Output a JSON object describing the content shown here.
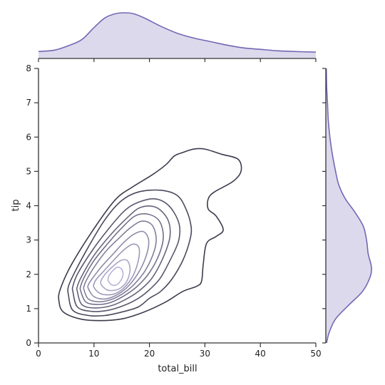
{
  "chart_data": {
    "type": "kde-joint",
    "xlabel": "total_bill",
    "ylabel": "tip",
    "xlim": [
      0,
      50
    ],
    "ylim": [
      0,
      8
    ],
    "xticks": [
      "0",
      "10",
      "20",
      "30",
      "40",
      "50"
    ],
    "yticks": [
      "0",
      "1",
      "2",
      "3",
      "4",
      "5",
      "6",
      "7",
      "8"
    ],
    "grid": false,
    "colors": {
      "outer_contour": "#3d3b4d",
      "inner_contour": "#b9b3d9",
      "marginal_line": "#7566b4",
      "marginal_fill": "#ddd9ec",
      "axis": "#333333"
    },
    "contour_levels": [
      {
        "level": 1,
        "points": [
          [
            3.7,
            1.2
          ],
          [
            4.5,
            0.9
          ],
          [
            7.5,
            0.7
          ],
          [
            11,
            0.65
          ],
          [
            15,
            0.7
          ],
          [
            19,
            0.9
          ],
          [
            23,
            1.2
          ],
          [
            26,
            1.5
          ],
          [
            28.5,
            1.65
          ],
          [
            29.4,
            1.8
          ],
          [
            29.7,
            2.3
          ],
          [
            30.3,
            2.9
          ],
          [
            32,
            3.1
          ],
          [
            33.3,
            3.3
          ],
          [
            32,
            3.7
          ],
          [
            30.6,
            3.9
          ],
          [
            30.6,
            4.2
          ],
          [
            31.7,
            4.4
          ],
          [
            35,
            4.7
          ],
          [
            36.5,
            5
          ],
          [
            36,
            5.35
          ],
          [
            33,
            5.5
          ],
          [
            30,
            5.65
          ],
          [
            28,
            5.65
          ],
          [
            26,
            5.55
          ],
          [
            24.5,
            5.45
          ],
          [
            23,
            5.2
          ],
          [
            20.5,
            4.9
          ],
          [
            17,
            4.55
          ],
          [
            14,
            4.2
          ],
          [
            10.5,
            3.45
          ],
          [
            6,
            2.3
          ],
          [
            3.9,
            1.55
          ]
        ]
      },
      {
        "level": 2,
        "points": [
          [
            5.4,
            1.4
          ],
          [
            6.2,
            0.95
          ],
          [
            9,
            0.8
          ],
          [
            12,
            0.8
          ],
          [
            15,
            0.9
          ],
          [
            18,
            1.05
          ],
          [
            20,
            1.3
          ],
          [
            22,
            1.5
          ],
          [
            24,
            1.85
          ],
          [
            26,
            2.4
          ],
          [
            27.3,
            3
          ],
          [
            27.5,
            3.4
          ],
          [
            26.6,
            3.9
          ],
          [
            25,
            4.3
          ],
          [
            22,
            4.45
          ],
          [
            18,
            4.4
          ],
          [
            15,
            4.15
          ],
          [
            12,
            3.6
          ],
          [
            9,
            2.8
          ],
          [
            6.5,
            2.05
          ],
          [
            5.4,
            1.65
          ]
        ]
      },
      {
        "level": 3,
        "points": [
          [
            6.2,
            1.5
          ],
          [
            7,
            1.05
          ],
          [
            9.5,
            0.92
          ],
          [
            12.5,
            0.95
          ],
          [
            15.5,
            1.1
          ],
          [
            18,
            1.3
          ],
          [
            20,
            1.55
          ],
          [
            22,
            1.9
          ],
          [
            24,
            2.5
          ],
          [
            25.3,
            3
          ],
          [
            25.3,
            3.5
          ],
          [
            23.5,
            4
          ],
          [
            21,
            4.2
          ],
          [
            18,
            4.1
          ],
          [
            15.5,
            3.85
          ],
          [
            12.5,
            3.3
          ],
          [
            9.5,
            2.65
          ],
          [
            7,
            2
          ],
          [
            6.2,
            1.65
          ]
        ]
      },
      {
        "level": 4,
        "points": [
          [
            7,
            1.5
          ],
          [
            7.8,
            1.12
          ],
          [
            10,
            1.02
          ],
          [
            13,
            1.08
          ],
          [
            15.5,
            1.25
          ],
          [
            18,
            1.5
          ],
          [
            20.5,
            1.9
          ],
          [
            22.5,
            2.5
          ],
          [
            23.7,
            3.1
          ],
          [
            23.3,
            3.6
          ],
          [
            21.2,
            3.95
          ],
          [
            18.4,
            3.95
          ],
          [
            16,
            3.65
          ],
          [
            13,
            3.15
          ],
          [
            10,
            2.55
          ],
          [
            7.8,
            1.95
          ],
          [
            7,
            1.65
          ]
        ]
      },
      {
        "level": 5,
        "points": [
          [
            7.6,
            1.52
          ],
          [
            8.5,
            1.2
          ],
          [
            10.5,
            1.12
          ],
          [
            13,
            1.18
          ],
          [
            15.5,
            1.38
          ],
          [
            17.8,
            1.65
          ],
          [
            20,
            2.05
          ],
          [
            21.8,
            2.6
          ],
          [
            22.5,
            3.1
          ],
          [
            21.8,
            3.55
          ],
          [
            19.8,
            3.75
          ],
          [
            17.4,
            3.7
          ],
          [
            15,
            3.35
          ],
          [
            12.5,
            2.9
          ],
          [
            10,
            2.4
          ],
          [
            8.2,
            1.9
          ],
          [
            7.6,
            1.65
          ]
        ]
      },
      {
        "level": 6,
        "points": [
          [
            8.2,
            1.55
          ],
          [
            9,
            1.28
          ],
          [
            11,
            1.2
          ],
          [
            13.2,
            1.27
          ],
          [
            15.5,
            1.47
          ],
          [
            17.5,
            1.75
          ],
          [
            19.4,
            2.15
          ],
          [
            20.9,
            2.7
          ],
          [
            21.2,
            3.1
          ],
          [
            20.4,
            3.45
          ],
          [
            18.6,
            3.55
          ],
          [
            16.5,
            3.35
          ],
          [
            14.5,
            3.05
          ],
          [
            12.3,
            2.7
          ],
          [
            10.2,
            2.25
          ],
          [
            8.7,
            1.85
          ],
          [
            8.2,
            1.65
          ]
        ]
      },
      {
        "level": 7,
        "points": [
          [
            9,
            1.58
          ],
          [
            10,
            1.35
          ],
          [
            11.8,
            1.28
          ],
          [
            13.5,
            1.35
          ],
          [
            15.5,
            1.55
          ],
          [
            17.2,
            1.85
          ],
          [
            18.7,
            2.25
          ],
          [
            19.7,
            2.7
          ],
          [
            19.8,
            3.05
          ],
          [
            18.8,
            3.25
          ],
          [
            17,
            3.15
          ],
          [
            15.2,
            2.9
          ],
          [
            13.5,
            2.6
          ],
          [
            11.5,
            2.25
          ],
          [
            9.8,
            1.9
          ],
          [
            9,
            1.7
          ]
        ]
      },
      {
        "level": 8,
        "points": [
          [
            10,
            1.62
          ],
          [
            11,
            1.45
          ],
          [
            12.5,
            1.4
          ],
          [
            14,
            1.45
          ],
          [
            15.5,
            1.62
          ],
          [
            17,
            1.95
          ],
          [
            18,
            2.4
          ],
          [
            18.1,
            2.78
          ],
          [
            17,
            2.88
          ],
          [
            15.3,
            2.7
          ],
          [
            13.5,
            2.4
          ],
          [
            11.8,
            2.1
          ],
          [
            10.4,
            1.85
          ],
          [
            10,
            1.72
          ]
        ]
      },
      {
        "level": 9,
        "points": [
          [
            11.3,
            1.7
          ],
          [
            12.3,
            1.55
          ],
          [
            13.5,
            1.53
          ],
          [
            14.8,
            1.6
          ],
          [
            16,
            1.82
          ],
          [
            16.5,
            2.15
          ],
          [
            16,
            2.4
          ],
          [
            14.8,
            2.4
          ],
          [
            13.2,
            2.2
          ],
          [
            11.9,
            1.98
          ],
          [
            11.3,
            1.82
          ]
        ]
      },
      {
        "level": 10,
        "points": [
          [
            12.6,
            1.8
          ],
          [
            13.4,
            1.68
          ],
          [
            14.4,
            1.73
          ],
          [
            15.2,
            1.95
          ],
          [
            15,
            2.15
          ],
          [
            14.1,
            2.2
          ],
          [
            13.1,
            2.05
          ],
          [
            12.6,
            1.92
          ]
        ]
      }
    ],
    "marginal_x_density": [
      [
        0,
        0.01
      ],
      [
        3,
        0.012
      ],
      [
        6,
        0.02
      ],
      [
        8,
        0.028
      ],
      [
        10,
        0.044
      ],
      [
        12,
        0.058
      ],
      [
        14,
        0.064
      ],
      [
        15.5,
        0.065
      ],
      [
        17,
        0.064
      ],
      [
        19,
        0.058
      ],
      [
        22,
        0.046
      ],
      [
        25,
        0.036
      ],
      [
        28,
        0.029
      ],
      [
        31,
        0.024
      ],
      [
        34,
        0.019
      ],
      [
        37,
        0.015
      ],
      [
        40,
        0.013
      ],
      [
        43,
        0.011
      ],
      [
        46,
        0.01
      ],
      [
        50,
        0.009
      ]
    ],
    "marginal_y_density": [
      [
        0,
        0.01
      ],
      [
        0.3,
        0.04
      ],
      [
        0.7,
        0.12
      ],
      [
        1.1,
        0.28
      ],
      [
        1.5,
        0.45
      ],
      [
        1.9,
        0.54
      ],
      [
        2.2,
        0.56
      ],
      [
        2.6,
        0.52
      ],
      [
        3.0,
        0.5
      ],
      [
        3.4,
        0.46
      ],
      [
        3.8,
        0.36
      ],
      [
        4.2,
        0.24
      ],
      [
        4.6,
        0.16
      ],
      [
        5.0,
        0.12
      ],
      [
        5.5,
        0.08
      ],
      [
        6,
        0.05
      ],
      [
        6.5,
        0.03
      ],
      [
        7,
        0.02
      ],
      [
        7.5,
        0.01
      ],
      [
        8,
        0.006
      ]
    ]
  }
}
